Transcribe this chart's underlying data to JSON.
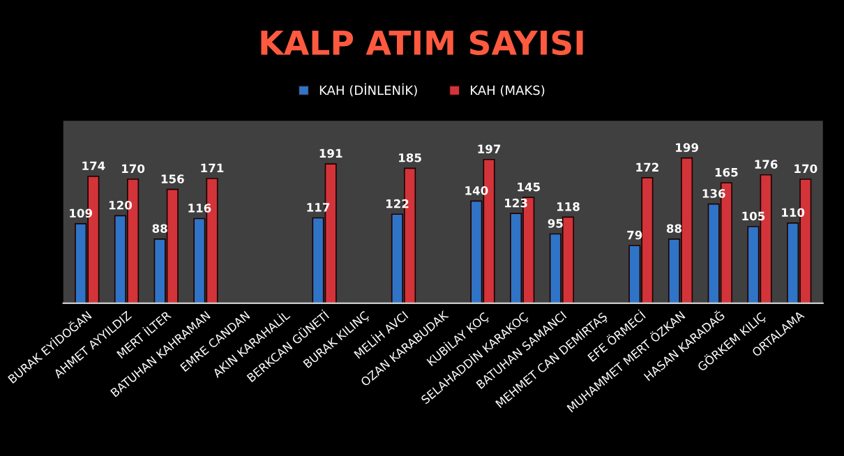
{
  "chart_data": {
    "type": "bar",
    "title": "KALP ATIM SAYISI",
    "categories": [
      "BURAK EYİDOĞAN",
      "AHMET AYYILDIZ",
      "MERT İLTER",
      "BATUHAN KAHRAMAN",
      "EMRE CANDAN",
      "AKIN KARAHALİL",
      "BERKCAN GÜNETİ",
      "BURAK KILINÇ",
      "MELİH AVCI",
      "OZAN KARABUDAK",
      "KUBİLAY KOÇ",
      "SELAHADDİN KARAKOÇ",
      "BATUHAN SAMANCI",
      "MEHMET CAN DEMİRTAŞ",
      "EFE ÖRMECİ",
      "MUHAMMET MERT ÖZKAN",
      "HASAN KARADAĞ",
      "GÖRKEM KILIÇ",
      "ORTALAMA"
    ],
    "series": [
      {
        "name": "KAH (DİNLENİK)",
        "color": "#2f74c6",
        "values": [
          109,
          120,
          88,
          116,
          null,
          null,
          117,
          null,
          122,
          null,
          140,
          123,
          95,
          null,
          79,
          88,
          136,
          105,
          110
        ]
      },
      {
        "name": "KAH (MAKS)",
        "color": "#d2343a",
        "values": [
          174,
          170,
          156,
          171,
          null,
          null,
          191,
          null,
          185,
          null,
          197,
          145,
          118,
          null,
          172,
          199,
          165,
          176,
          170
        ]
      }
    ],
    "ylim": [
      0,
      250
    ],
    "data_labels": true,
    "legend": "top",
    "grid": false,
    "tick_labels": "x"
  }
}
